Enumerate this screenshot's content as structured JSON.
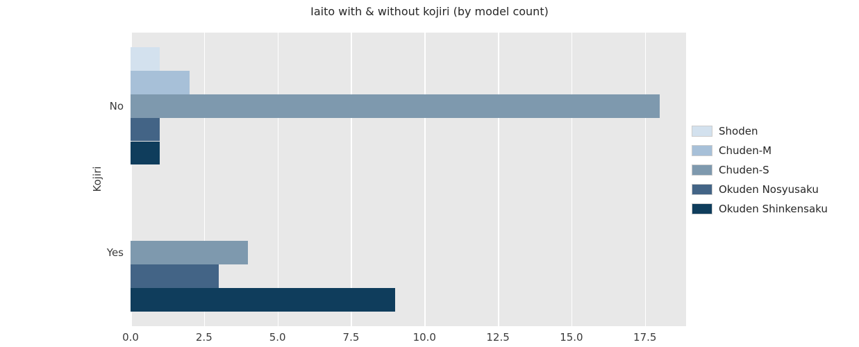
{
  "chart_data": {
    "type": "bar",
    "orientation": "horizontal",
    "title": "Iaito with & without kojiri (by model count)",
    "xlabel": "",
    "ylabel": "Kojiri",
    "categories": [
      "No",
      "Yes"
    ],
    "series": [
      {
        "name": "Shoden",
        "color": "#d3e1ee",
        "values": [
          1,
          0
        ]
      },
      {
        "name": "Chuden-M",
        "color": "#a7c0d8",
        "values": [
          2,
          0
        ]
      },
      {
        "name": "Chuden-S",
        "color": "#7e99ae",
        "values": [
          18,
          4
        ]
      },
      {
        "name": "Okuden Nosyusaku",
        "color": "#436486",
        "values": [
          1,
          3
        ]
      },
      {
        "name": "Okuden Shinkensaku",
        "color": "#0f3d5c",
        "values": [
          1,
          9
        ]
      }
    ],
    "xlim": [
      0,
      18.9
    ],
    "xticks": [
      0.0,
      2.5,
      5.0,
      7.5,
      10.0,
      12.5,
      15.0,
      17.5
    ],
    "xtick_labels": [
      "0.0",
      "2.5",
      "5.0",
      "7.5",
      "10.0",
      "12.5",
      "15.0",
      "17.5"
    ],
    "grid": true,
    "grid_color": "#ffffff",
    "plot_bg": "#e8e8e8",
    "legend_position": "center right",
    "group_fraction": 0.8
  }
}
